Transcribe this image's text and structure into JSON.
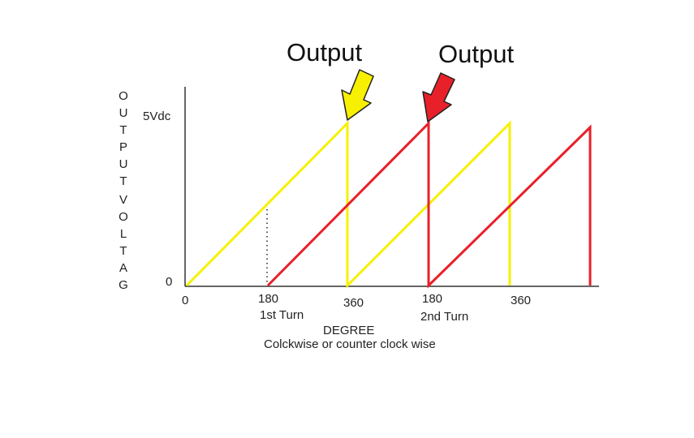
{
  "labels": {
    "output_1": "Output",
    "output_2": "Output",
    "y_top": "5Vdc",
    "y_zero": "0",
    "y_axis_1": "OUTPUT",
    "y_axis_2": "VOLTAG",
    "x_0": "0",
    "x_180_a": "180",
    "turn_1": "1st Turn",
    "x_360_a": "360",
    "x_180_b": "180",
    "turn_2": "2nd Turn",
    "x_360_b": "360",
    "x_title": "DEGREE",
    "x_subtitle": "Colckwise or counter clock wise"
  }
}
